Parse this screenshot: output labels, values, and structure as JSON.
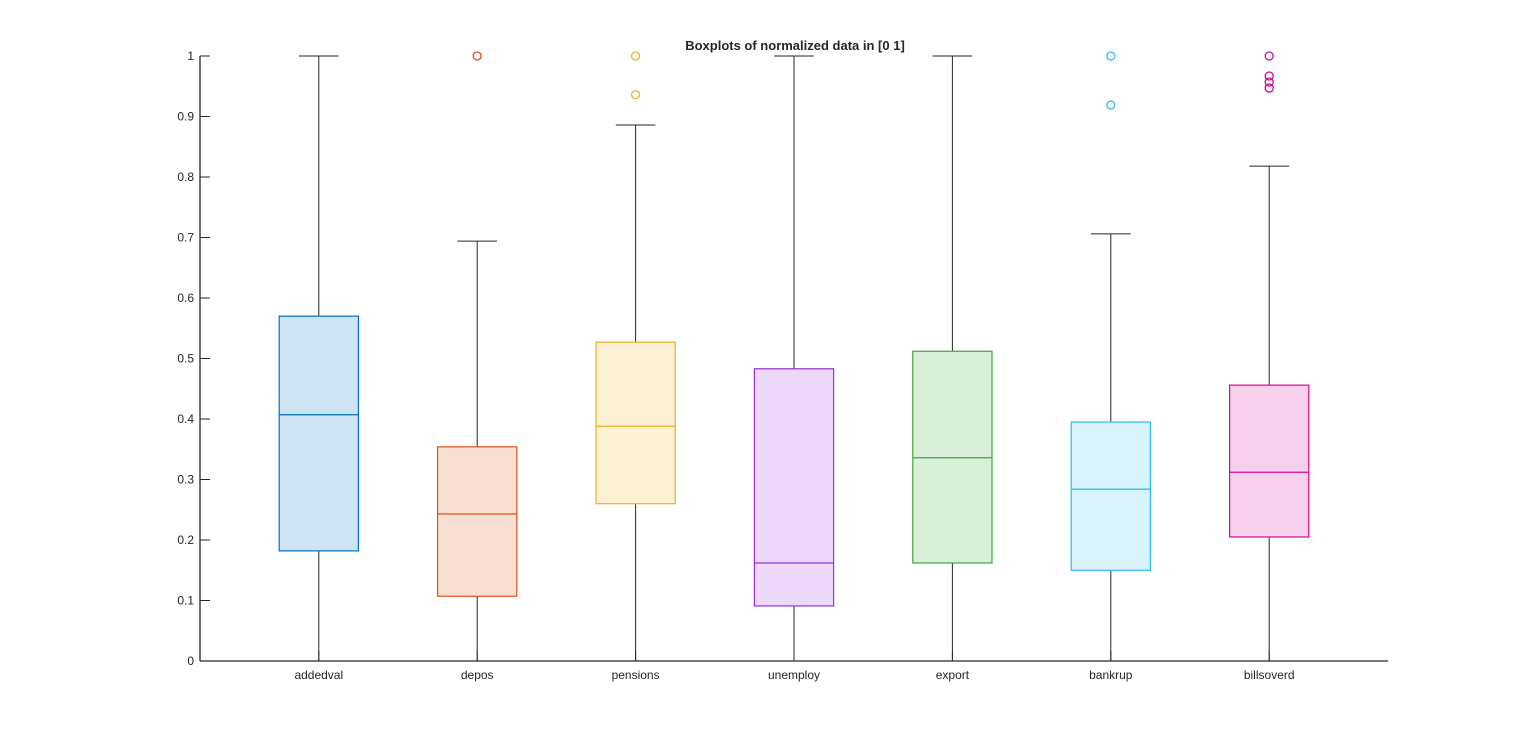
{
  "chart_data": {
    "type": "boxplot",
    "title": "Boxplots of normalized data in [0 1]",
    "xlabel": "",
    "ylabel": "",
    "ylim": [
      0,
      1
    ],
    "yticks": [
      "0",
      "0.1",
      "0.2",
      "0.3",
      "0.4",
      "0.5",
      "0.6",
      "0.7",
      "0.8",
      "0.9",
      "1"
    ],
    "grid": false,
    "categories": [
      "addedval",
      "depos",
      "pensions",
      "unemploy",
      "export",
      "bankrup",
      "billsoverd"
    ],
    "boxes": [
      {
        "name": "addedval",
        "color": "#0072BD",
        "whisker_low": 0,
        "q1": 0.182,
        "median": 0.407,
        "q3": 0.57,
        "whisker_high": 1.0,
        "outliers": []
      },
      {
        "name": "depos",
        "color": "#D95319",
        "whisker_low": 0,
        "q1": 0.107,
        "median": 0.243,
        "q3": 0.354,
        "whisker_high": 0.694,
        "outliers": [
          1.0
        ]
      },
      {
        "name": "pensions",
        "color": "#EDB120",
        "whisker_low": 0,
        "q1": 0.26,
        "median": 0.388,
        "q3": 0.527,
        "whisker_high": 0.886,
        "outliers": [
          0.936,
          1.0
        ]
      },
      {
        "name": "unemploy",
        "color": "#9B2FD9",
        "whisker_low": 0,
        "q1": 0.091,
        "median": 0.162,
        "q3": 0.483,
        "whisker_high": 1.0,
        "outliers": []
      },
      {
        "name": "export",
        "color": "#3BAA35",
        "whisker_low": 0,
        "q1": 0.162,
        "median": 0.336,
        "q3": 0.512,
        "whisker_high": 1.0,
        "outliers": []
      },
      {
        "name": "bankrup",
        "color": "#2EBDEA",
        "whisker_low": 0,
        "q1": 0.15,
        "median": 0.284,
        "q3": 0.395,
        "whisker_high": 0.706,
        "outliers": [
          0.919,
          1.0
        ]
      },
      {
        "name": "billsoverd",
        "color": "#D6089A",
        "whisker_low": 0,
        "q1": 0.205,
        "median": 0.312,
        "q3": 0.456,
        "whisker_high": 0.818,
        "outliers": [
          0.947,
          0.957,
          0.967,
          1.0
        ]
      }
    ]
  }
}
